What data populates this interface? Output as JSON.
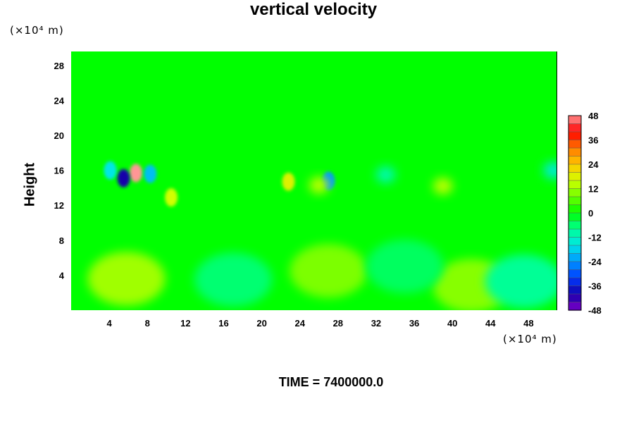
{
  "chart_data": {
    "type": "heatmap",
    "title": "vertical velocity",
    "xlabel": "",
    "ylabel": "Height",
    "x_unit": "(×10⁴ m)",
    "y_unit": "(×10⁴ m)",
    "xlim": [
      0,
      51
    ],
    "ylim": [
      0,
      29.6
    ],
    "x_ticks": [
      4,
      8,
      12,
      16,
      20,
      24,
      28,
      32,
      36,
      40,
      44,
      48
    ],
    "y_ticks": [
      4,
      8,
      12,
      16,
      20,
      24,
      28
    ],
    "colorbar": {
      "min": -48,
      "max": 48,
      "step": 4,
      "tick_labels": [
        48,
        36,
        24,
        12,
        0,
        -12,
        -24,
        -36,
        -48
      ]
    },
    "background_value": 0,
    "features": [
      {
        "x": 6.8,
        "y": 15.7,
        "value": 48
      },
      {
        "x": 5.5,
        "y": 15.1,
        "value": -40
      },
      {
        "x": 4.1,
        "y": 16.0,
        "value": -16
      },
      {
        "x": 8.3,
        "y": 15.6,
        "value": -20
      },
      {
        "x": 10.5,
        "y": 12.9,
        "value": 16
      },
      {
        "x": 27.0,
        "y": 14.8,
        "value": -24
      },
      {
        "x": 22.8,
        "y": 14.7,
        "value": 18
      },
      {
        "x": 26.0,
        "y": 14.3,
        "value": 14
      },
      {
        "x": 39.0,
        "y": 14.2,
        "value": 14
      },
      {
        "x": 50.6,
        "y": 16.0,
        "value": -14
      },
      {
        "x": 33.0,
        "y": 15.5,
        "value": -10
      },
      {
        "x": 5.8,
        "y": 3.6,
        "value": 12
      },
      {
        "x": 27.0,
        "y": 4.5,
        "value": 9
      },
      {
        "x": 42.0,
        "y": 2.8,
        "value": 10
      },
      {
        "x": 17.0,
        "y": 3.5,
        "value": -6
      },
      {
        "x": 47.5,
        "y": 3.3,
        "value": -8
      },
      {
        "x": 35.0,
        "y": 5.0,
        "value": -5
      }
    ]
  },
  "footer": {
    "time_label": "TIME = 7400000.0"
  }
}
